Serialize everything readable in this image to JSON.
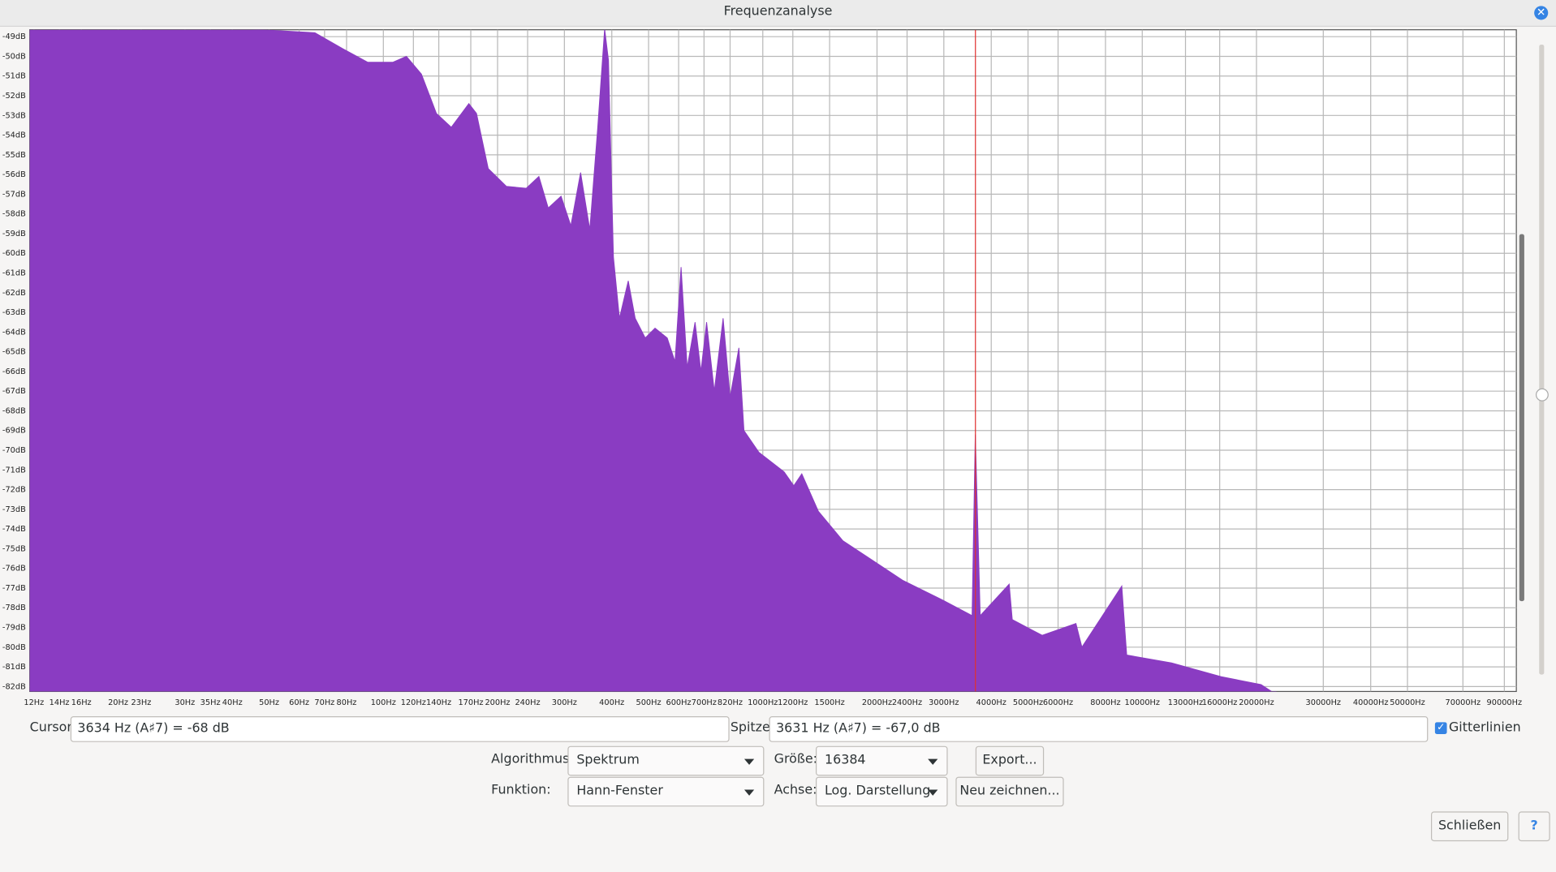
{
  "window": {
    "title": "Frequenzanalyse"
  },
  "chart_data": {
    "type": "area",
    "x_scale": "log",
    "grid": true,
    "color": "#8a3cc2",
    "cursor_color": "#e0312f",
    "x": [
      11.7,
      66,
      78,
      91,
      106,
      115,
      126,
      138,
      151,
      168,
      176,
      189,
      211,
      238,
      257,
      272,
      294,
      312,
      331,
      350,
      367,
      383,
      392,
      404,
      419,
      442,
      461,
      490,
      520,
      560,
      587,
      609,
      632,
      663,
      687,
      711,
      745,
      786,
      820,
      865,
      892,
      976,
      1138,
      1207,
      1267,
      1401,
      1626,
      1950,
      2335,
      2973,
      3561,
      3631,
      3741,
      4460,
      4544,
      5448,
      6688,
      6934,
      8832,
      9100,
      11943,
      16150,
      20570,
      22520
    ],
    "values": [
      -48,
      -48.8,
      -49.6,
      -50.3,
      -50.3,
      -50,
      -50.9,
      -52.9,
      -53.6,
      -52.4,
      -52.9,
      -55.7,
      -56.6,
      -56.7,
      -56.1,
      -57.7,
      -57.1,
      -58.6,
      -55.9,
      -58.8,
      -53.7,
      -48.6,
      -50.2,
      -60.2,
      -63.3,
      -61.4,
      -63.3,
      -64.3,
      -63.8,
      -64.3,
      -65.5,
      -60.7,
      -65.8,
      -63.5,
      -66,
      -63.5,
      -67,
      -63.3,
      -67.3,
      -64.8,
      -69,
      -70.1,
      -71.1,
      -71.8,
      -71.2,
      -73.1,
      -74.6,
      -75.6,
      -76.6,
      -77.6,
      -78.4,
      -69.2,
      -78.4,
      -76.8,
      -78.6,
      -79.4,
      -78.8,
      -80,
      -76.9,
      -80.4,
      -80.8,
      -81.5,
      -81.9,
      -82.4
    ],
    "cursor_x": 3634,
    "xlim": [
      11.7,
      96800
    ],
    "ylim": [
      -82.25,
      -48.65
    ],
    "xticks": [
      {
        "value": 12,
        "label": "12Hz"
      },
      {
        "value": 14,
        "label": "14Hz"
      },
      {
        "value": 16,
        "label": "16Hz"
      },
      {
        "value": 20,
        "label": "20Hz"
      },
      {
        "value": 23,
        "label": "23Hz"
      },
      {
        "value": 30,
        "label": "30Hz"
      },
      {
        "value": 35,
        "label": "35Hz"
      },
      {
        "value": 40,
        "label": "40Hz"
      },
      {
        "value": 50,
        "label": "50Hz"
      },
      {
        "value": 60,
        "label": "60Hz"
      },
      {
        "value": 70,
        "label": "70Hz"
      },
      {
        "value": 80,
        "label": "80Hz"
      },
      {
        "value": 100,
        "label": "100Hz"
      },
      {
        "value": 120,
        "label": "120Hz"
      },
      {
        "value": 140,
        "label": "140Hz"
      },
      {
        "value": 170,
        "label": "170Hz"
      },
      {
        "value": 200,
        "label": "200Hz"
      },
      {
        "value": 240,
        "label": "240Hz"
      },
      {
        "value": 300,
        "label": "300Hz"
      },
      {
        "value": 400,
        "label": "400Hz"
      },
      {
        "value": 500,
        "label": "500Hz"
      },
      {
        "value": 600,
        "label": "600Hz"
      },
      {
        "value": 700,
        "label": "700Hz"
      },
      {
        "value": 820,
        "label": "820Hz"
      },
      {
        "value": 1000,
        "label": "1000Hz"
      },
      {
        "value": 1200,
        "label": "1200Hz"
      },
      {
        "value": 1500,
        "label": "1500Hz"
      },
      {
        "value": 2000,
        "label": "2000Hz"
      },
      {
        "value": 2400,
        "label": "2400Hz"
      },
      {
        "value": 3000,
        "label": "3000Hz"
      },
      {
        "value": 4000,
        "label": "4000Hz"
      },
      {
        "value": 5000,
        "label": "5000Hz"
      },
      {
        "value": 6000,
        "label": "6000Hz"
      },
      {
        "value": 8000,
        "label": "8000Hz"
      },
      {
        "value": 10000,
        "label": "10000Hz"
      },
      {
        "value": 13000,
        "label": "13000Hz"
      },
      {
        "value": 16000,
        "label": "16000Hz"
      },
      {
        "value": 20000,
        "label": "20000Hz"
      },
      {
        "value": 30000,
        "label": "30000Hz"
      },
      {
        "value": 40000,
        "label": "40000Hz"
      },
      {
        "value": 50000,
        "label": "50000Hz"
      },
      {
        "value": 70000,
        "label": "70000Hz"
      },
      {
        "value": 90000,
        "label": "90000Hz"
      }
    ],
    "yticks": [
      {
        "value": -49,
        "label": "-49dB"
      },
      {
        "value": -50,
        "label": "-50dB"
      },
      {
        "value": -51,
        "label": "-51dB"
      },
      {
        "value": -52,
        "label": "-52dB"
      },
      {
        "value": -53,
        "label": "-53dB"
      },
      {
        "value": -54,
        "label": "-54dB"
      },
      {
        "value": -55,
        "label": "-55dB"
      },
      {
        "value": -56,
        "label": "-56dB"
      },
      {
        "value": -57,
        "label": "-57dB"
      },
      {
        "value": -58,
        "label": "-58dB"
      },
      {
        "value": -59,
        "label": "-59dB"
      },
      {
        "value": -60,
        "label": "-60dB"
      },
      {
        "value": -61,
        "label": "-61dB"
      },
      {
        "value": -62,
        "label": "-62dB"
      },
      {
        "value": -63,
        "label": "-63dB"
      },
      {
        "value": -64,
        "label": "-64dB"
      },
      {
        "value": -65,
        "label": "-65dB"
      },
      {
        "value": -66,
        "label": "-66dB"
      },
      {
        "value": -67,
        "label": "-67dB"
      },
      {
        "value": -68,
        "label": "-68dB"
      },
      {
        "value": -69,
        "label": "-69dB"
      },
      {
        "value": -70,
        "label": "-70dB"
      },
      {
        "value": -71,
        "label": "-71dB"
      },
      {
        "value": -72,
        "label": "-72dB"
      },
      {
        "value": -73,
        "label": "-73dB"
      },
      {
        "value": -74,
        "label": "-74dB"
      },
      {
        "value": -75,
        "label": "-75dB"
      },
      {
        "value": -76,
        "label": "-76dB"
      },
      {
        "value": -77,
        "label": "-77dB"
      },
      {
        "value": -78,
        "label": "-78dB"
      },
      {
        "value": -79,
        "label": "-79dB"
      },
      {
        "value": -80,
        "label": "-80dB"
      },
      {
        "value": -81,
        "label": "-81dB"
      },
      {
        "value": -82,
        "label": "-82dB"
      }
    ]
  },
  "controls": {
    "cursor_label": "Cursor:",
    "cursor_value": "3634 Hz (A♯7) = -68 dB",
    "peak_label": "Spitze:",
    "peak_value": "3631 Hz (A♯7) = -67,0 dB",
    "grid_checkbox": "Gitterlinien",
    "algorithm_label": "Algorithmus:",
    "algorithm_value": "Spektrum",
    "size_label": "Größe:",
    "size_value": "16384",
    "export_button": "Export...",
    "function_label": "Funktion:",
    "function_value": "Hann-Fenster",
    "axis_label": "Achse:",
    "axis_value": "Log. Darstellung",
    "redraw_button": "Neu zeichnen...",
    "close_button": "Schließen",
    "help_button": "?"
  }
}
